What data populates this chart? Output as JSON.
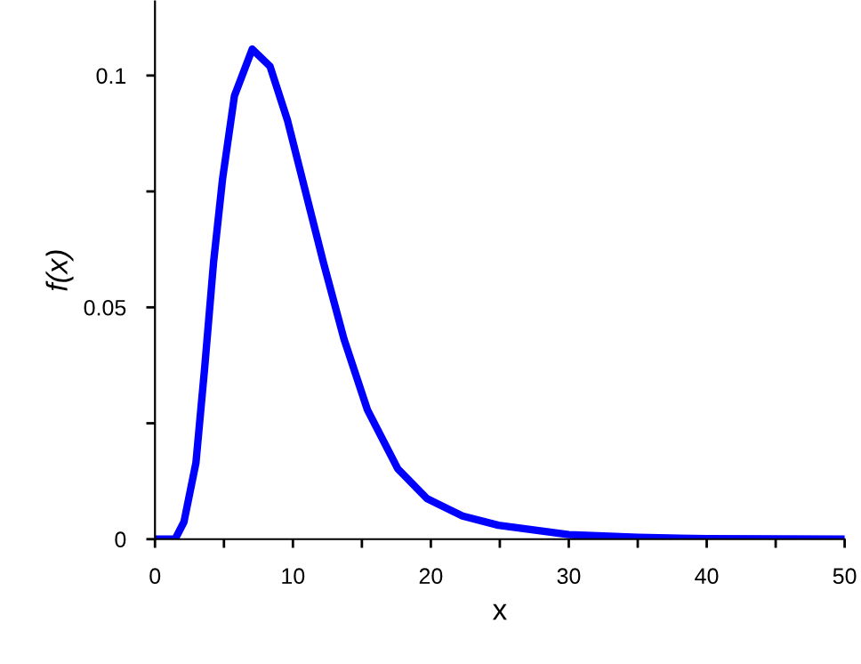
{
  "chart_data": {
    "type": "line",
    "xlabel": "x",
    "ylabel": "f(x)",
    "x": [
      0,
      1.46,
      2.1,
      2.97,
      3.6,
      4.25,
      4.9,
      5.76,
      7.05,
      8.34,
      9.6,
      10.9,
      12.2,
      13.7,
      15.4,
      17.6,
      19.7,
      22.3,
      24.9,
      30,
      35,
      40,
      50
    ],
    "series": [
      {
        "color": "#0000ff",
        "values": [
          0,
          0,
          0.0037,
          0.0165,
          0.0369,
          0.0598,
          0.0777,
          0.0956,
          0.1057,
          0.102,
          0.0904,
          0.0751,
          0.0598,
          0.0432,
          0.0279,
          0.0152,
          0.0088,
          0.005,
          0.003,
          0.001,
          0.0004,
          0.0001,
          0
        ]
      }
    ],
    "xlim": [
      0,
      50
    ],
    "ylim": [
      0,
      0.116
    ],
    "xticks": [
      0,
      {
        "value": 5,
        "label": null
      },
      10,
      {
        "value": 15,
        "label": null
      },
      20,
      {
        "value": 25,
        "label": null
      },
      30,
      {
        "value": 35,
        "label": null
      },
      40,
      {
        "value": 45,
        "label": null
      },
      50
    ],
    "yticks": [
      0,
      {
        "value": 0.025,
        "label": null
      },
      0.05,
      {
        "value": 0.075,
        "label": null
      },
      0.1
    ],
    "grid": false,
    "legend": false,
    "marker": "none",
    "line_style": "solid"
  }
}
